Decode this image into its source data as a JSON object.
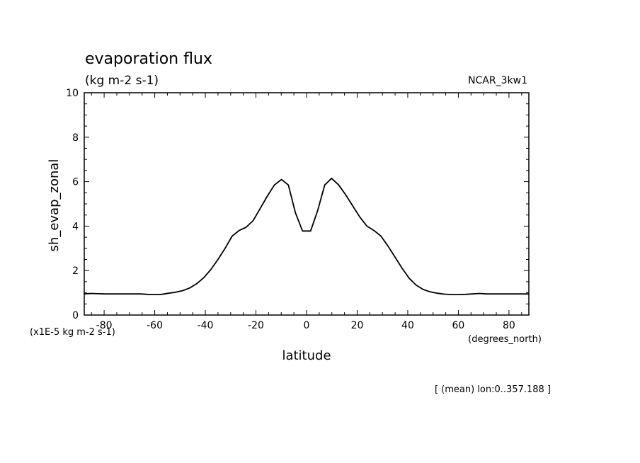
{
  "chart_data": {
    "type": "line",
    "title": "evaporation flux",
    "subtitle": "(kg m-2 s-1)",
    "model_label": "NCAR_3kw1",
    "ylabel": "sh_evap_zonal",
    "y_units_note": "(x1E-5 kg m-2 s-1)",
    "xlabel": "latitude",
    "x_units_note": "(degrees_north)",
    "footnote": "[ (mean) lon:0..357.188 ]",
    "xlim": [
      -87.86,
      87.86
    ],
    "ylim": [
      0,
      10
    ],
    "x_ticks": [
      -80,
      -60,
      -40,
      -20,
      0,
      20,
      40,
      60,
      80
    ],
    "x_tick_labels": [
      "-80",
      "-60",
      "-40",
      "-20",
      "0",
      "20",
      "40",
      "60",
      "80"
    ],
    "y_ticks": [
      0,
      2,
      4,
      6,
      8,
      10
    ],
    "y_tick_labels": [
      "0",
      "2",
      "4",
      "6",
      "8",
      "10"
    ],
    "grid": false,
    "series": [
      {
        "x": [
          -87.86,
          -85.1,
          -82.3,
          -79.5,
          -76.7,
          -73.9,
          -71.2,
          -68.4,
          -65.6,
          -62.8,
          -60.0,
          -57.3,
          -54.5,
          -51.7,
          -48.9,
          -46.1,
          -43.3,
          -40.6,
          -37.8,
          -35.0,
          -32.2,
          -29.4,
          -26.7,
          -23.9,
          -21.1,
          -18.3,
          -15.5,
          -12.7,
          -9.9,
          -7.2,
          -4.4,
          -1.6,
          1.6,
          4.4,
          7.2,
          9.9,
          12.7,
          15.5,
          18.3,
          21.1,
          23.9,
          26.7,
          29.4,
          32.2,
          35.0,
          37.8,
          40.6,
          43.3,
          46.1,
          48.9,
          51.7,
          54.5,
          57.3,
          60.0,
          62.8,
          65.6,
          68.4,
          71.2,
          73.9,
          76.7,
          79.5,
          82.3,
          85.1,
          87.86
        ],
        "y": [
          0.95,
          0.97,
          0.96,
          0.95,
          0.95,
          0.95,
          0.95,
          0.95,
          0.95,
          0.93,
          0.92,
          0.93,
          0.98,
          1.03,
          1.1,
          1.22,
          1.42,
          1.68,
          2.05,
          2.5,
          3.0,
          3.55,
          3.8,
          3.95,
          4.25,
          4.8,
          5.35,
          5.85,
          6.1,
          5.85,
          4.6,
          3.78,
          3.78,
          4.7,
          5.85,
          6.15,
          5.85,
          5.4,
          4.9,
          4.4,
          4.0,
          3.8,
          3.55,
          3.1,
          2.6,
          2.1,
          1.65,
          1.35,
          1.15,
          1.04,
          0.98,
          0.94,
          0.92,
          0.92,
          0.93,
          0.95,
          0.97,
          0.95,
          0.95,
          0.95,
          0.95,
          0.95,
          0.95,
          0.95
        ]
      }
    ]
  }
}
